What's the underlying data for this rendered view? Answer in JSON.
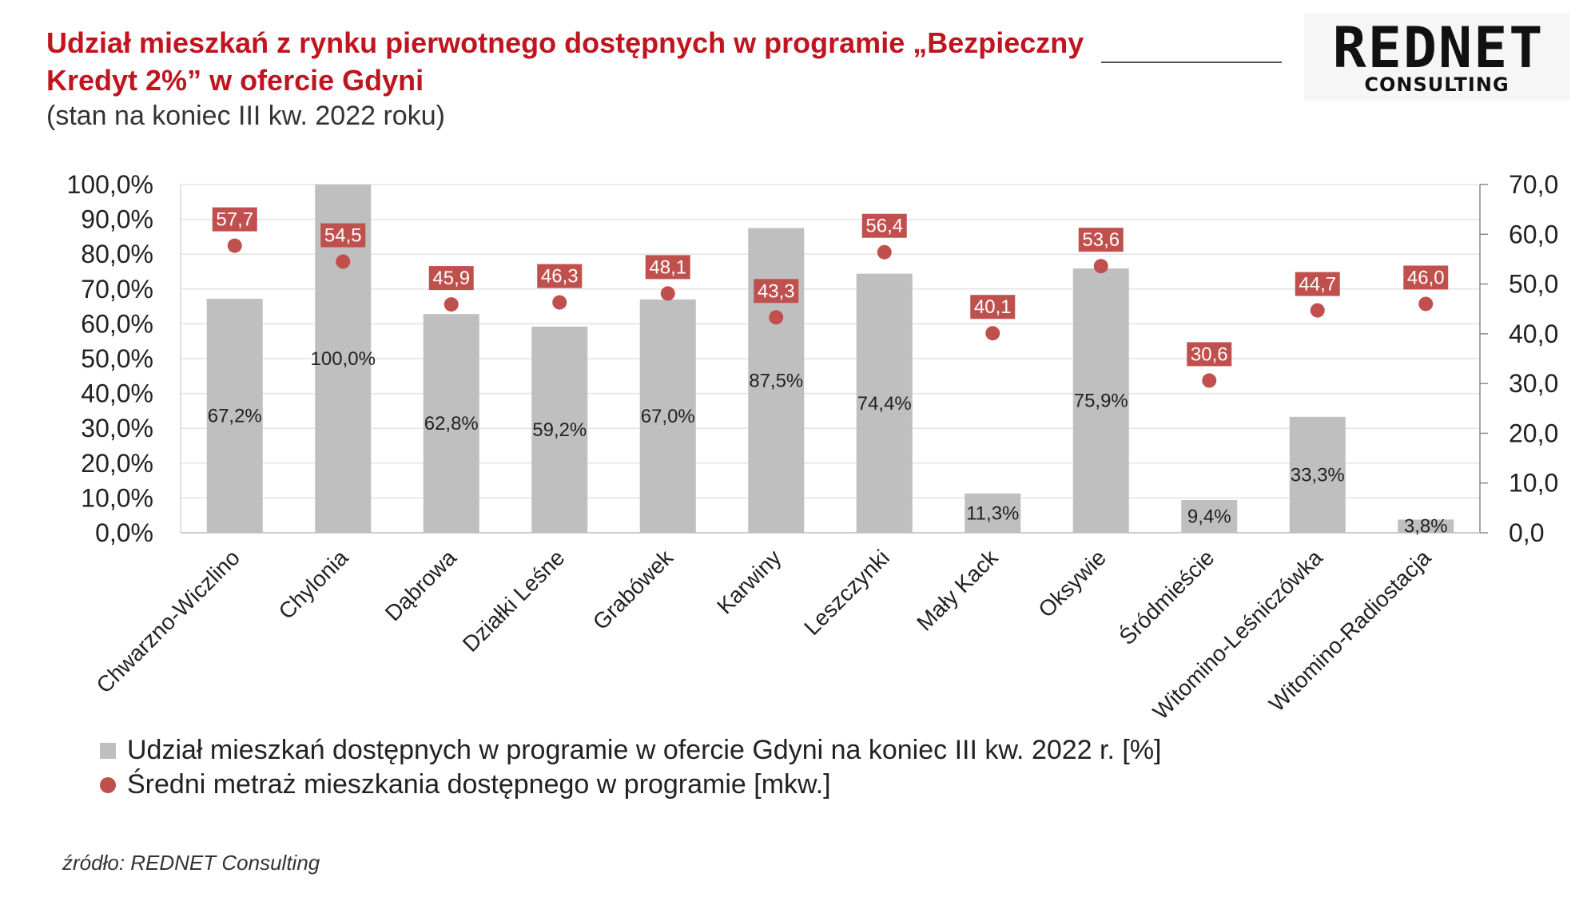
{
  "title": "Udział mieszkań z rynku pierwotnego dostępnych w programie „Bezpieczny Kredyt 2%” w ofercie Gdyni",
  "subtitle": "(stan na koniec III kw. 2022 roku)",
  "logo": {
    "main": "REDNET",
    "sub": "CONSULTING"
  },
  "source": "źródło: REDNET Consulting",
  "colors": {
    "bar": "#bfbfbf",
    "dot": "#c0504d",
    "title": "#c0141f",
    "grid": "#e3e3e3"
  },
  "chart_data": {
    "type": "bar",
    "categories": [
      "Chwarzno-Wiczlino",
      "Chylonia",
      "Dąbrowa",
      "Działki Leśne",
      "Grabówek",
      "Karwiny",
      "Leszczynki",
      "Mały Kack",
      "Oksywie",
      "Śródmieście",
      "Witomino-Leśniczówka",
      "Witomino-Radiostacja"
    ],
    "series": [
      {
        "name": "Udział mieszkań dostępnych w programie w ofercie Gdyni na koniec III kw. 2022 r. [%]",
        "axis": "left",
        "kind": "bar",
        "values": [
          67.2,
          100.0,
          62.8,
          59.2,
          67.0,
          87.5,
          74.4,
          11.3,
          75.9,
          9.4,
          33.3,
          3.8
        ],
        "labels": [
          "67,2%",
          "100,0%",
          "62,8%",
          "59,2%",
          "67,0%",
          "87,5%",
          "74,4%",
          "11,3%",
          "75,9%",
          "9,4%",
          "33,3%",
          "3,8%"
        ]
      },
      {
        "name": "Średni metraż mieszkania dostępnego w programie [mkw.]",
        "axis": "right",
        "kind": "scatter",
        "values": [
          57.7,
          54.5,
          45.9,
          46.3,
          48.1,
          43.3,
          56.4,
          40.1,
          53.6,
          30.6,
          44.7,
          46.0
        ],
        "labels": [
          "57,7",
          "54,5",
          "45,9",
          "46,3",
          "48,1",
          "43,3",
          "56,4",
          "40,1",
          "53,6",
          "30,6",
          "44,7",
          "46,0"
        ]
      }
    ],
    "y_left": {
      "range": [
        0,
        100
      ],
      "ticks": [
        0,
        10,
        20,
        30,
        40,
        50,
        60,
        70,
        80,
        90,
        100
      ],
      "tick_labels": [
        "0,0%",
        "10,0%",
        "20,0%",
        "30,0%",
        "40,0%",
        "50,0%",
        "60,0%",
        "70,0%",
        "80,0%",
        "90,0%",
        "100,0%"
      ]
    },
    "y_right": {
      "range": [
        0,
        70
      ],
      "ticks": [
        0,
        10,
        20,
        30,
        40,
        50,
        60,
        70
      ],
      "tick_labels": [
        "0,0",
        "10,0",
        "20,0",
        "30,0",
        "40,0",
        "50,0",
        "60,0",
        "70,0"
      ]
    },
    "grid": true,
    "legend": "bottom-left"
  }
}
